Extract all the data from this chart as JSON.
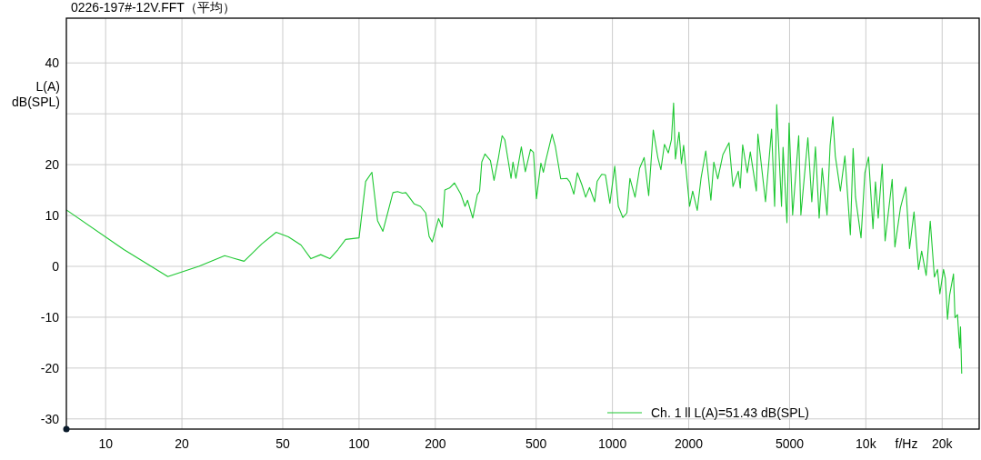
{
  "chart_data": {
    "type": "line",
    "title": "0226-197#-12V.FFT（平均）",
    "xlabel": "f/Hz",
    "ylabel": "L(A)\ndB(SPL)",
    "log": "x",
    "grid": true,
    "legend": "bottom right",
    "marker": "none",
    "line_style": "solid",
    "xlim": [
      7,
      28000
    ],
    "ylim": [
      -32,
      48.8
    ],
    "xticks": [
      10,
      20,
      50,
      100,
      200,
      500,
      1000,
      2000,
      5000,
      {
        "value": 10000,
        "label": "10k"
      },
      {
        "value": 20000,
        "label": "20k"
      }
    ],
    "yticks": [
      -30,
      -20,
      -10,
      0,
      10,
      20,
      {
        "value": 30,
        "label": null
      },
      40
    ],
    "series": [
      {
        "name": "Ch. 1 ll L(A)=51.43 dB(SPL)",
        "color": "#1ec832",
        "x": [
          7.0,
          11.8,
          17.6,
          23.3,
          29.5,
          35.2,
          41.3,
          47.1,
          52.6,
          59.0,
          64.6,
          70.6,
          76.7,
          82.6,
          88.5,
          100,
          106.2,
          112.4,
          118.3,
          124.2,
          136.1,
          142,
          148.3,
          153,
          164.9,
          174.6,
          183.3,
          189,
          194.5,
          206,
          213,
          218,
          227.5,
          238,
          252,
          262,
          268,
          281,
          293,
          299,
          305,
          314,
          330,
          341,
          355,
          367,
          376,
          398,
          405,
          416,
          437,
          453,
          475,
          488,
          501,
          522,
          534,
          545,
          578,
          595,
          625,
          661,
          679,
          704,
          727,
          758,
          784,
          812,
          851,
          870,
          907,
          938,
          977,
          1021,
          1055,
          1099,
          1140,
          1172,
          1228,
          1280,
          1334,
          1390,
          1449,
          1510,
          1553,
          1604,
          1662,
          1709,
          1743,
          1772,
          1831,
          1872,
          1909,
          2016,
          2073,
          2161,
          2236,
          2335,
          2446,
          2512,
          2604,
          2729,
          2884,
          2990,
          3136,
          3194,
          3265,
          3404,
          3499,
          3697,
          3749,
          4018,
          4246,
          4365,
          4448,
          4647,
          4712,
          4882,
          4977,
          5141,
          5432,
          5541,
          5904,
          6119,
          6324,
          6542,
          6725,
          7027,
          7226,
          7410,
          7576,
          7933,
          8266,
          8686,
          8907,
          9103,
          9570,
          9911,
          10250,
          10670,
          10910,
          11190,
          11600,
          11910,
          12700,
          13020,
          13690,
          14380,
          14870,
          15490,
          16140,
          16600,
          17300,
          17950,
          18640,
          19170,
          19590,
          20250,
          20590,
          21000,
          21400,
          22170,
          22480,
          22990,
          23440,
          23630,
          23890
        ],
        "values": [
          11.1,
          3.3,
          -2.0,
          0,
          2.1,
          1.0,
          4.4,
          6.7,
          5.8,
          4.2,
          1.5,
          2.3,
          1.5,
          3.3,
          5.3,
          5.6,
          16.7,
          18.5,
          9.0,
          6.9,
          14.5,
          14.7,
          14.4,
          14.5,
          12.3,
          11.8,
          10.5,
          5.9,
          4.8,
          9.4,
          7.7,
          15.0,
          15.4,
          16.4,
          14.2,
          11.8,
          13.0,
          9.5,
          14.1,
          14.8,
          20.5,
          22.1,
          20.8,
          16.9,
          21.4,
          25.7,
          24.9,
          17.3,
          20.5,
          17.3,
          23.5,
          18.6,
          23.0,
          22.4,
          13.3,
          20.3,
          18.5,
          20.7,
          26.0,
          23.6,
          17.2,
          17.3,
          16.6,
          14.2,
          18.4,
          16.0,
          13.6,
          15.5,
          12.7,
          16.7,
          18.1,
          18.0,
          12.4,
          19.7,
          11.8,
          9.6,
          10.5,
          17.3,
          13.6,
          19.3,
          21.4,
          13.9,
          26.8,
          21.4,
          19.0,
          24.0,
          22.3,
          24.9,
          32.1,
          21.1,
          26.4,
          20.2,
          23.8,
          11.8,
          14.8,
          11.0,
          17.3,
          22.7,
          13.0,
          20.5,
          17.2,
          22.0,
          24.3,
          15.7,
          18.7,
          15.4,
          23.9,
          18.4,
          22.5,
          14.8,
          26.0,
          12.7,
          27.0,
          11.8,
          31.8,
          11.8,
          23.4,
          8.6,
          28.2,
          10.1,
          25.7,
          10.1,
          25.3,
          12.7,
          23.5,
          9.5,
          19.3,
          10.1,
          23.8,
          29.4,
          21.7,
          14.8,
          21.7,
          6.2,
          23.2,
          13.6,
          5.6,
          18.4,
          21.5,
          7.4,
          16.6,
          9.5,
          20.1,
          5.0,
          17.1,
          3.8,
          11.5,
          15.6,
          3.5,
          10.7,
          -0.6,
          3.0,
          -1.8,
          8.9,
          -2.1,
          -0.6,
          -5.4,
          -0.6,
          -2.4,
          -10.4,
          -5.7,
          -1.5,
          -10.1,
          -9.5,
          -16.1,
          -11.9,
          -21.1
        ]
      }
    ]
  }
}
